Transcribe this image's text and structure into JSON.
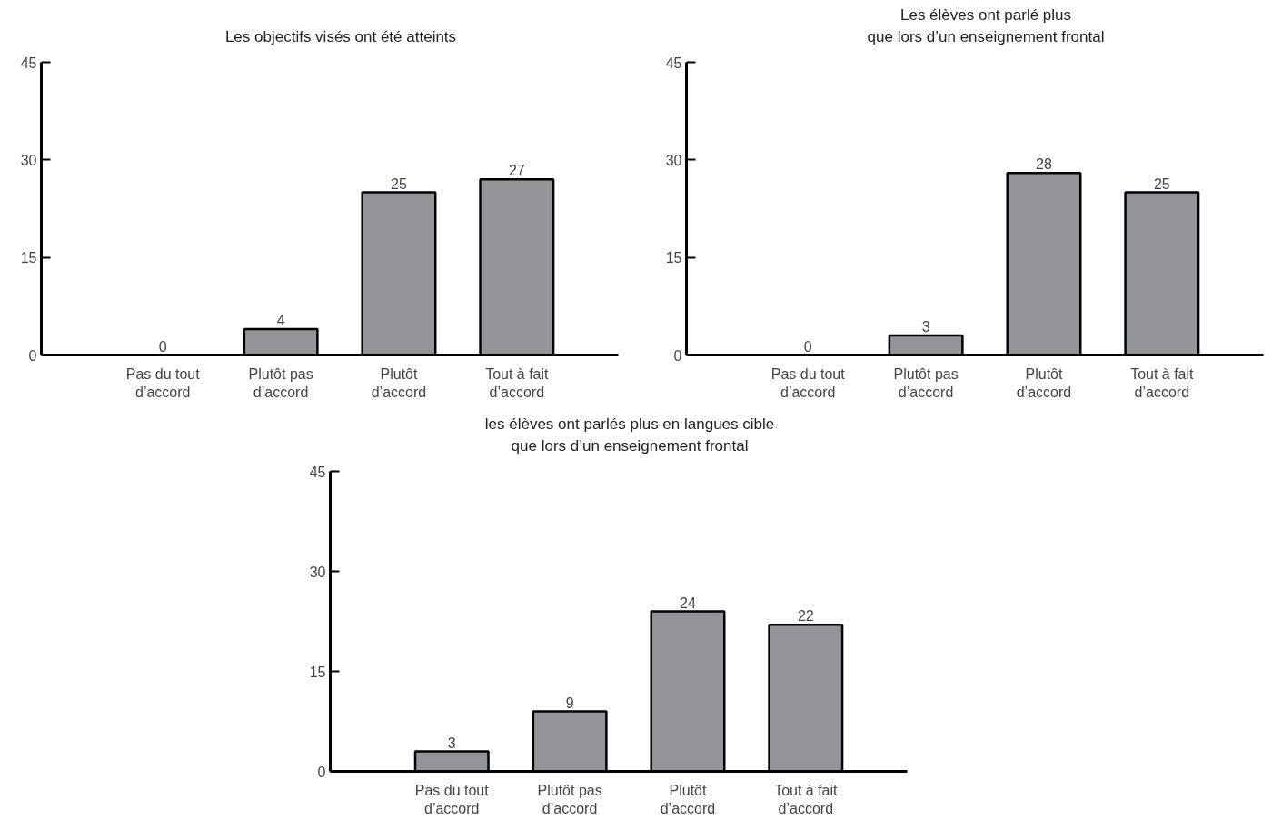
{
  "chart_data": [
    {
      "type": "bar",
      "title": "Les objectifs visés ont été atteints",
      "categories": [
        "Pas du tout d’accord",
        "Plutôt pas d’accord",
        "Plutôt d’accord",
        "Tout à fait d’accord"
      ],
      "values": [
        0,
        4,
        25,
        27
      ],
      "color": "#939598",
      "ylim": [
        0,
        45
      ],
      "yticks": [
        0,
        15,
        30,
        45
      ],
      "grid": false,
      "data_labels": true
    },
    {
      "type": "bar",
      "title": "Les élèves ont parlé plus\nque lors d’un enseignement frontal",
      "categories": [
        "Pas du tout d’accord",
        "Plutôt pas d’accord",
        "Plutôt d’accord",
        "Tout à fait d’accord"
      ],
      "values": [
        0,
        3,
        28,
        25
      ],
      "color": "#939598",
      "ylim": [
        0,
        45
      ],
      "yticks": [
        0,
        15,
        30,
        45
      ],
      "grid": false,
      "data_labels": true
    },
    {
      "type": "bar",
      "title": "les élèves ont parlés plus en langues cible\nque lors d’un enseignement frontal",
      "categories": [
        "Pas du tout d’accord",
        "Plutôt pas d’accord",
        "Plutôt d’accord",
        "Tout à fait d’accord"
      ],
      "values": [
        3,
        9,
        24,
        22
      ],
      "color": "#939598",
      "ylim": [
        0,
        45
      ],
      "yticks": [
        0,
        15,
        30,
        45
      ],
      "grid": false,
      "data_labels": true
    }
  ]
}
